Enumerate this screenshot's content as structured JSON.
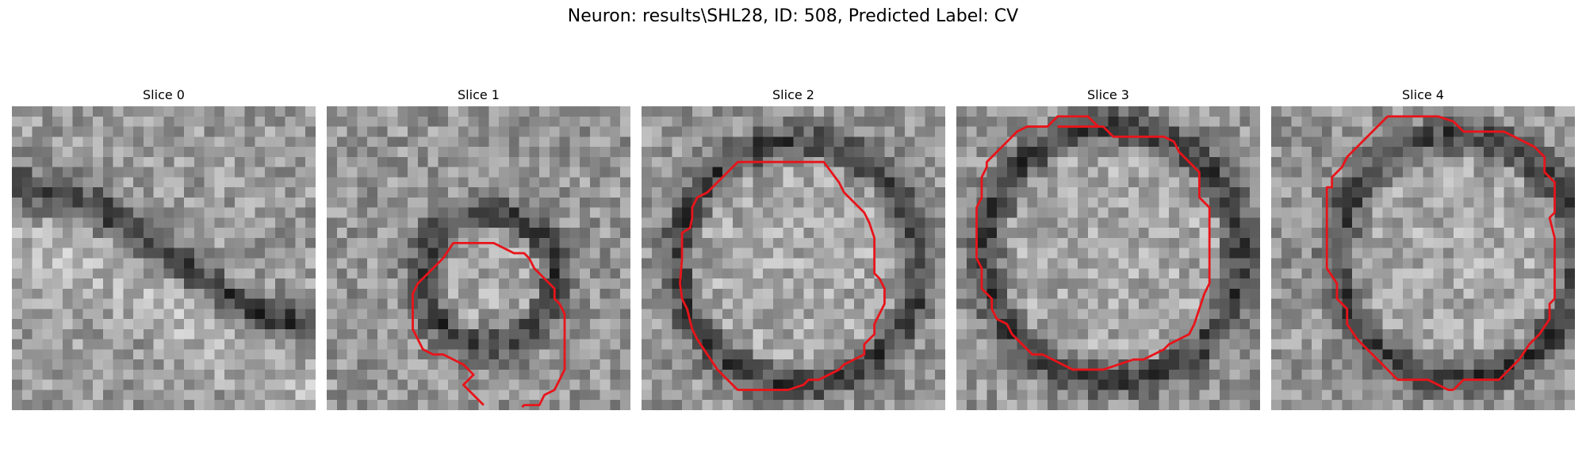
{
  "figure": {
    "title": "Neuron: results\\SHL28, ID: 508, Predicted Label: CV"
  },
  "panels": [
    {
      "title": "Slice 0",
      "has_contour": false,
      "seed": 11,
      "ring": [
        -0.55,
        -0.1,
        0.18
      ]
    },
    {
      "title": "Slice 1",
      "has_contour": true,
      "seed": 27,
      "ring": [
        0.52,
        0.55,
        0.22
      ]
    },
    {
      "title": "Slice 2",
      "has_contour": true,
      "seed": 43,
      "ring": [
        0.5,
        0.5,
        0.4
      ]
    },
    {
      "title": "Slice 3",
      "has_contour": true,
      "seed": 59,
      "ring": [
        0.5,
        0.47,
        0.42
      ]
    },
    {
      "title": "Slice 4",
      "has_contour": true,
      "seed": 71,
      "ring": [
        0.6,
        0.48,
        0.4
      ]
    }
  ],
  "colors": {
    "contour": "#e8141a",
    "background": "#ffffff"
  }
}
